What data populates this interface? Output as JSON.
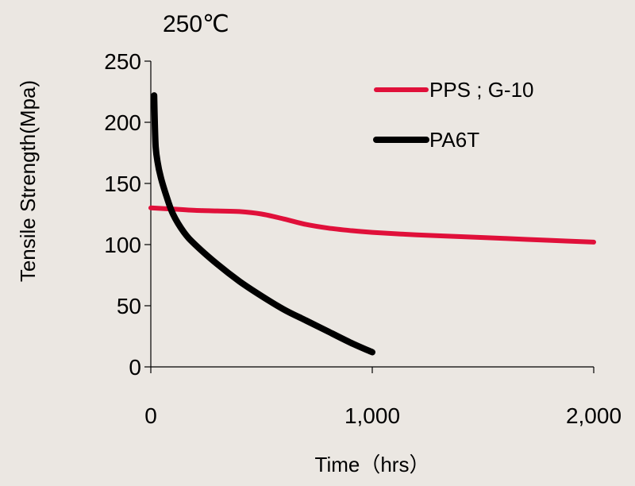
{
  "chart_data": {
    "type": "line",
    "title": "250℃",
    "xlabel": "Time（hrs）",
    "ylabel": "Tensile Strength(Mpa)",
    "xlim": [
      0,
      2000
    ],
    "ylim": [
      0,
      250
    ],
    "xticks": [
      0,
      1000,
      2000
    ],
    "xtick_labels": [
      "0",
      "1,000",
      "2,000"
    ],
    "yticks": [
      0,
      50,
      100,
      150,
      200,
      250
    ],
    "ytick_labels": [
      "0",
      "50",
      "100",
      "150",
      "200",
      "250"
    ],
    "grid": false,
    "legend": "top-right",
    "series": [
      {
        "name": "PPS ; G-10",
        "color": "#e0103a",
        "x": [
          0,
          100,
          200,
          300,
          400,
          500,
          600,
          700,
          800,
          900,
          1000,
          1200,
          1400,
          1600,
          1800,
          2000
        ],
        "y": [
          130,
          129,
          128,
          127.5,
          127,
          125,
          121,
          116.5,
          113.5,
          111.5,
          110,
          108,
          106.5,
          105,
          103.5,
          102
        ]
      },
      {
        "name": "PA6T",
        "color": "#000000",
        "x": [
          15,
          18,
          22,
          30,
          45,
          70,
          100,
          150,
          200,
          300,
          400,
          500,
          600,
          700,
          800,
          900,
          1000
        ],
        "y": [
          222,
          200,
          180,
          168,
          155,
          140,
          125,
          110,
          100,
          84,
          70,
          58,
          47,
          38,
          29,
          20,
          12
        ]
      }
    ]
  }
}
